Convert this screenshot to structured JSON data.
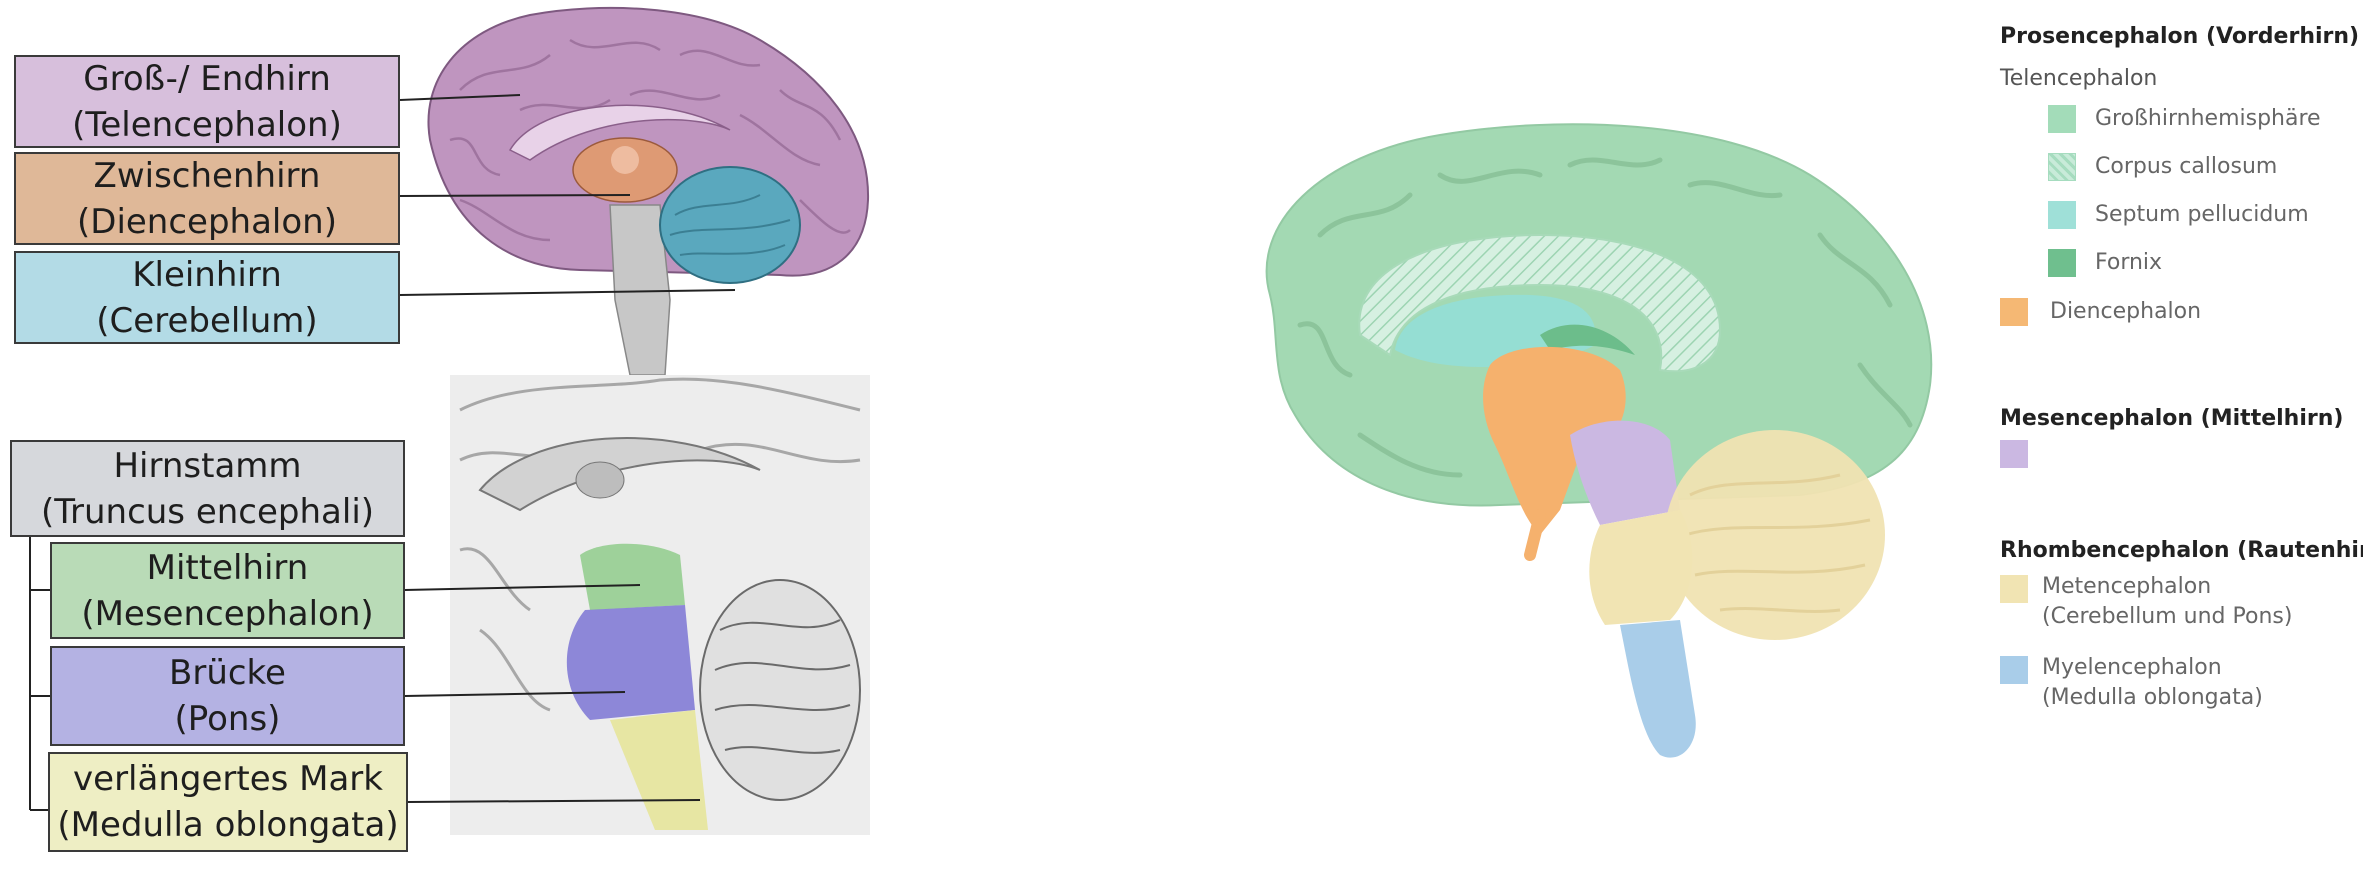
{
  "left_labels": {
    "telencephalon": {
      "line1": "Groß-/ Endhirn",
      "line2": "(Telencephalon)",
      "color": "#d7bfdc"
    },
    "diencephalon": {
      "line1": "Zwischenhirn",
      "line2": "(Diencephalon)",
      "color": "#dfb898"
    },
    "cerebellum": {
      "line1": "Kleinhirn",
      "line2": "(Cerebellum)",
      "color": "#b3dbe6"
    },
    "brainstem": {
      "line1": "Hirnstamm",
      "line2": "(Truncus encephali)",
      "color": "#d6d8dc"
    },
    "mesencephalon": {
      "line1": "Mittelhirn",
      "line2": "(Mesencephalon)",
      "color": "#b9dbb7"
    },
    "pons": {
      "line1": "Brücke",
      "line2": "(Pons)",
      "color": "#b4b2e3"
    },
    "medulla": {
      "line1": "verlängertes Mark",
      "line2": "(Medulla oblongata)",
      "color": "#eeeec4"
    }
  },
  "legend": {
    "prosencephalon": {
      "title": "Prosencephalon (Vorderhirn)",
      "sub": "Telencephalon",
      "items": [
        {
          "label": "Großhirnhemisphäre",
          "color": "#a3dcb9"
        },
        {
          "label": "Corpus callosum",
          "color": "#c8ebd9"
        },
        {
          "label": "Septum pellucidum",
          "color": "#9fe0d8"
        },
        {
          "label": "Fornix",
          "color": "#6fbf8e"
        }
      ],
      "diencephalon": {
        "label": "Diencephalon",
        "color": "#f5b874"
      }
    },
    "mesencephalon": {
      "title": "Mesencephalon (Mittelhirn)",
      "color": "#cbb8e2"
    },
    "rhombencephalon": {
      "title": "Rhombencephalon (Rautenhirn)",
      "items": [
        {
          "line1": "Metencephalon",
          "line2": "(Cerebellum und Pons)",
          "color": "#f1e4b3"
        },
        {
          "line1": "Myelencephalon",
          "line2": "(Medulla oblongata)",
          "color": "#a9cde9"
        }
      ]
    }
  }
}
